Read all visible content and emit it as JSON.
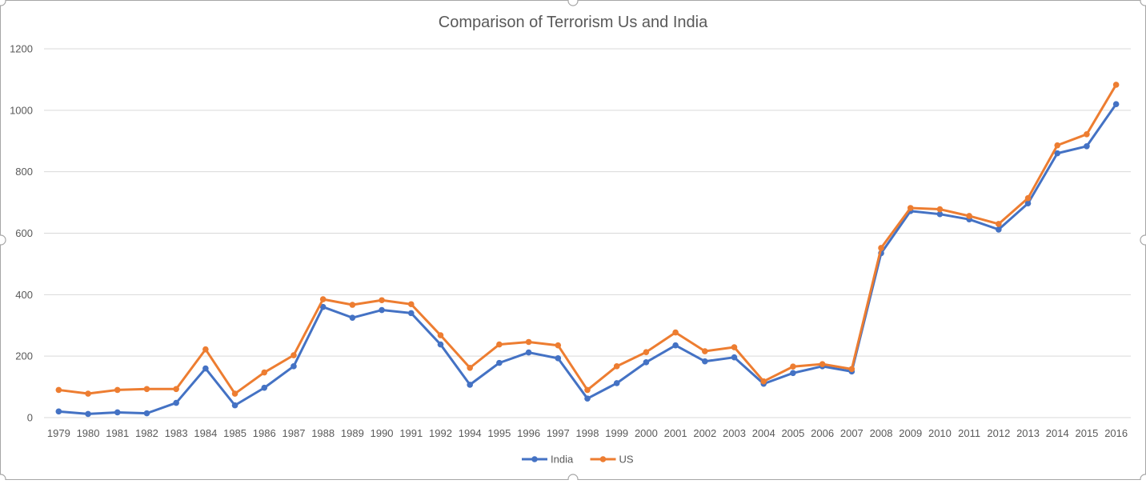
{
  "chart_data": {
    "type": "line",
    "title": "Comparison of Terrorism Us and India",
    "xlabel": "",
    "ylabel": "",
    "ylim": [
      0,
      1200
    ],
    "yticks": [
      0,
      200,
      400,
      600,
      800,
      1000,
      1200
    ],
    "grid": true,
    "legend_position": "bottom",
    "categories": [
      "1979",
      "1980",
      "1981",
      "1982",
      "1983",
      "1984",
      "1985",
      "1986",
      "1987",
      "1988",
      "1989",
      "1990",
      "1991",
      "1992",
      "1994",
      "1995",
      "1996",
      "1997",
      "1998",
      "1999",
      "2000",
      "2001",
      "2002",
      "2003",
      "2004",
      "2005",
      "2006",
      "2007",
      "2008",
      "2009",
      "2010",
      "2011",
      "2012",
      "2013",
      "2014",
      "2015",
      "2016"
    ],
    "series": [
      {
        "name": "India",
        "color": "#4472c4",
        "values": [
          20,
          12,
          17,
          14,
          48,
          160,
          40,
          97,
          167,
          360,
          325,
          350,
          340,
          238,
          107,
          178,
          212,
          193,
          62,
          112,
          180,
          235,
          183,
          196,
          110,
          145,
          167,
          150,
          535,
          672,
          662,
          645,
          612,
          697,
          860,
          883,
          1020
        ]
      },
      {
        "name": "US",
        "color": "#ed7d31",
        "values": [
          90,
          78,
          90,
          93,
          93,
          222,
          78,
          147,
          203,
          385,
          367,
          382,
          369,
          268,
          162,
          238,
          246,
          235,
          90,
          167,
          213,
          277,
          216,
          229,
          118,
          166,
          174,
          158,
          552,
          682,
          678,
          656,
          630,
          714,
          886,
          922,
          1083
        ]
      }
    ]
  }
}
